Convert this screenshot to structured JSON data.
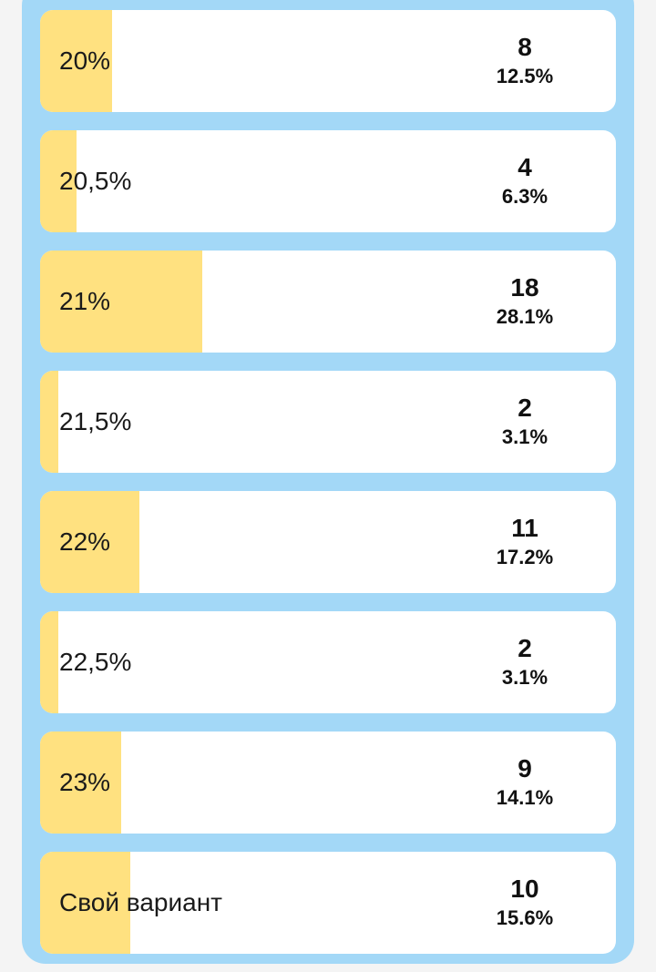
{
  "poll": {
    "fill_color": "#ffe180",
    "panel_color": "#a3d8f7",
    "options": [
      {
        "label": "20%",
        "count": "8",
        "percent": "12.5%",
        "share": 12.5
      },
      {
        "label": "20,5%",
        "count": "4",
        "percent": "6.3%",
        "share": 6.3
      },
      {
        "label": "21%",
        "count": "18",
        "percent": "28.1%",
        "share": 28.1
      },
      {
        "label": "21,5%",
        "count": "2",
        "percent": "3.1%",
        "share": 3.1
      },
      {
        "label": "22%",
        "count": "11",
        "percent": "17.2%",
        "share": 17.2
      },
      {
        "label": "22,5%",
        "count": "2",
        "percent": "3.1%",
        "share": 3.1
      },
      {
        "label": "23%",
        "count": "9",
        "percent": "14.1%",
        "share": 14.1
      },
      {
        "label": "Свой вариант",
        "count": "10",
        "percent": "15.6%",
        "share": 15.6
      }
    ]
  }
}
